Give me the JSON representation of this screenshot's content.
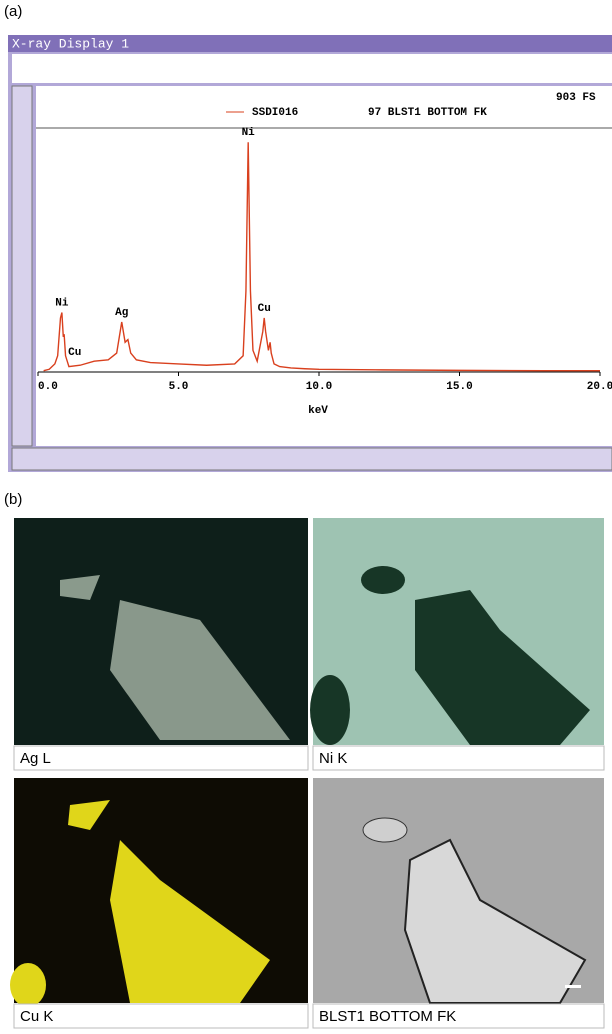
{
  "figure": {
    "panel_a": "(a)",
    "panel_b": "(b)"
  },
  "chart_data": {
    "type": "line",
    "title": "X-ray Display 1",
    "legend_label": "SSDI016",
    "subtitle": "97 BLST1 BOTTOM FK",
    "scale_label": "903 FS",
    "xlabel": "keV",
    "xlim": [
      0,
      20
    ],
    "xticks": [
      {
        "value": 0,
        "label": "0.0"
      },
      {
        "value": 5,
        "label": "5.0"
      },
      {
        "value": 10,
        "label": "10.0"
      },
      {
        "value": 15,
        "label": "15.0"
      },
      {
        "value": 20,
        "label": "20.0"
      }
    ],
    "ylim": [
      0,
      903
    ],
    "series": [
      {
        "name": "SSDI016",
        "color": "#d9401e",
        "x": [
          0.2,
          0.4,
          0.6,
          0.7,
          0.8,
          0.85,
          0.9,
          0.93,
          0.98,
          1.1,
          1.5,
          2.0,
          2.5,
          2.8,
          2.98,
          3.1,
          3.2,
          3.3,
          3.5,
          4.0,
          5.0,
          6.0,
          7.0,
          7.3,
          7.4,
          7.48,
          7.56,
          7.65,
          7.8,
          8.0,
          8.05,
          8.1,
          8.2,
          8.26,
          8.3,
          8.4,
          8.6,
          9.0,
          9.5,
          10,
          12,
          15,
          18,
          20
        ],
        "values": [
          5,
          10,
          30,
          60,
          200,
          220,
          130,
          140,
          60,
          20,
          25,
          40,
          45,
          70,
          185,
          110,
          120,
          70,
          45,
          35,
          30,
          25,
          30,
          60,
          300,
          850,
          300,
          80,
          40,
          150,
          200,
          150,
          80,
          110,
          70,
          30,
          20,
          15,
          12,
          10,
          8,
          6,
          5,
          5
        ]
      }
    ],
    "annotations": [
      {
        "text": "Ni",
        "x": 0.85
      },
      {
        "text": "Cu",
        "x": 0.93
      },
      {
        "text": "Ag",
        "x": 2.98
      },
      {
        "text": "Ni",
        "x": 7.48
      },
      {
        "text": "Cu",
        "x": 8.05
      }
    ]
  },
  "maps": [
    {
      "caption": "Ag L"
    },
    {
      "caption": "Ni K"
    },
    {
      "caption": "Cu K"
    },
    {
      "caption": "BLST1 BOTTOM FK"
    }
  ]
}
